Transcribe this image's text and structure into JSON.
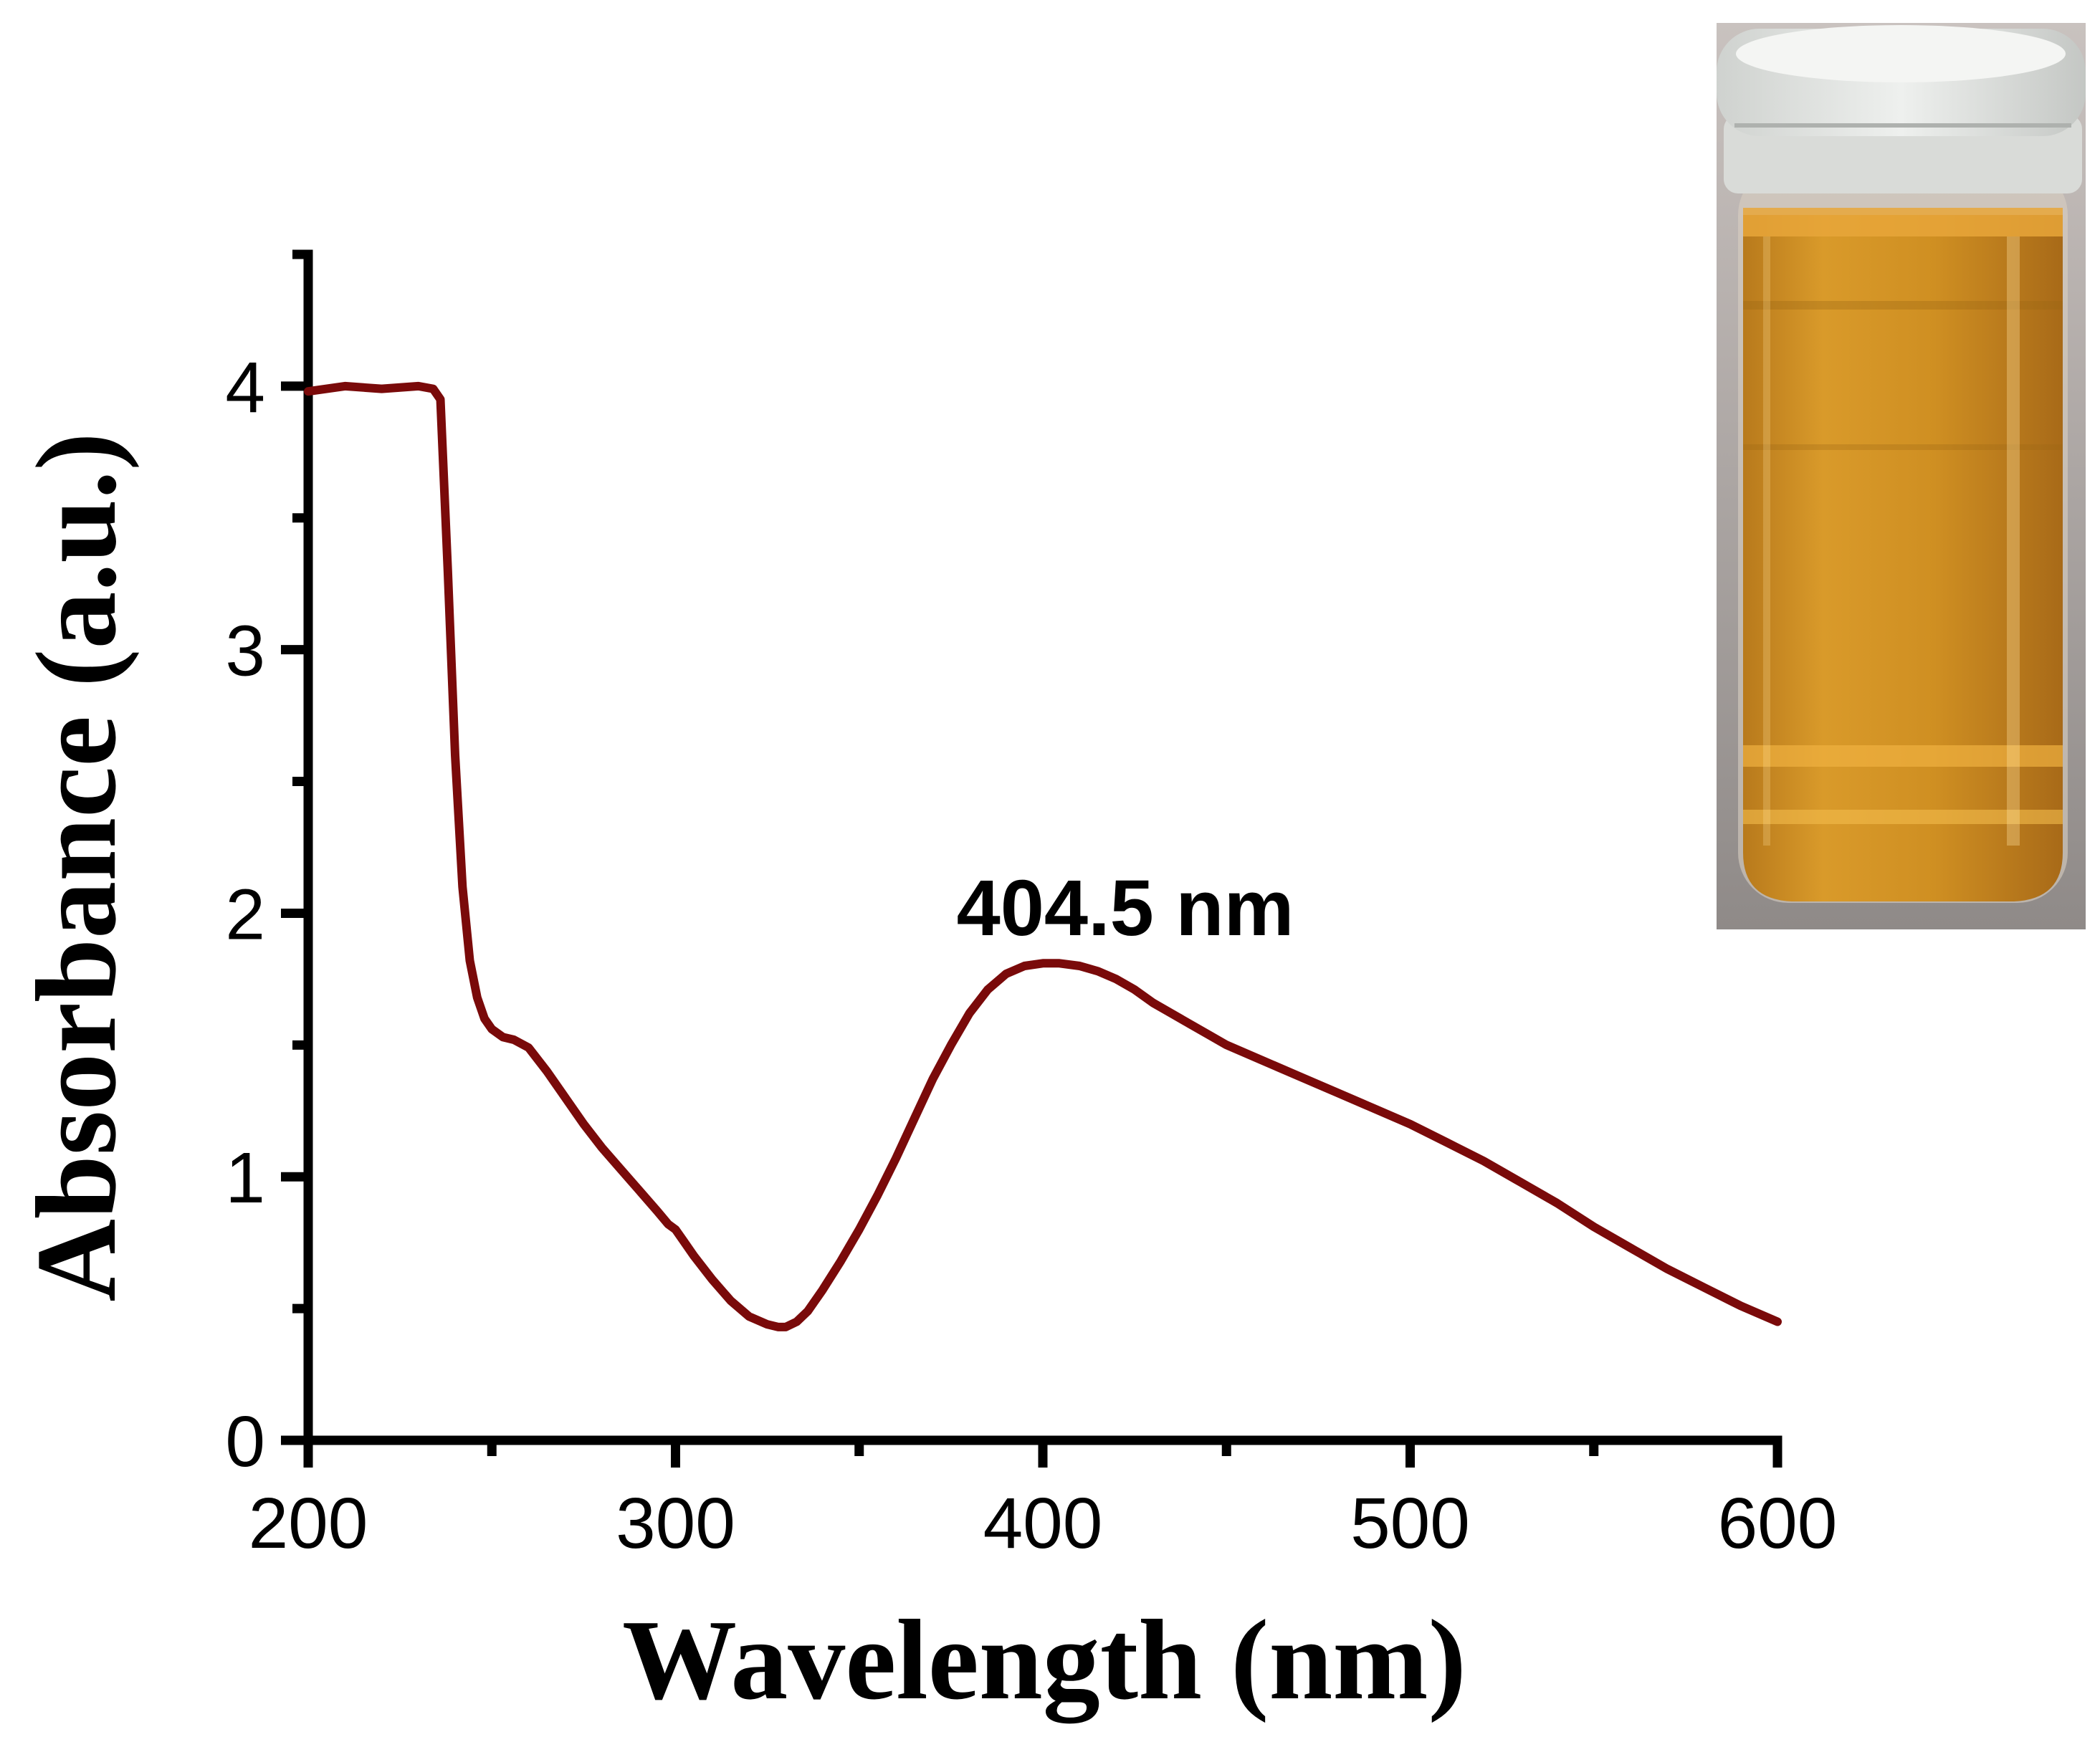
{
  "chart_data": {
    "type": "line",
    "title": "",
    "xlabel": "Wavelength (nm)",
    "ylabel": "Absorbance (a.u.)",
    "xlim": [
      200,
      600
    ],
    "ylim": [
      0,
      4.5
    ],
    "xticks": [
      200,
      300,
      400,
      500,
      600
    ],
    "yticks": [
      0,
      1,
      2,
      3,
      4
    ],
    "xticklabels": [
      "200",
      "300",
      "400",
      "500",
      "600"
    ],
    "yticklabels": [
      "0",
      "1",
      "2",
      "3",
      "4"
    ],
    "grid": false,
    "series": [
      {
        "name": "Absorbance",
        "color": "#7a0a0a",
        "x": [
          200,
          210,
          220,
          230,
          234,
          236,
          238,
          240,
          242,
          244,
          246,
          248,
          250,
          253,
          256,
          260,
          265,
          270,
          275,
          280,
          285,
          290,
          295,
          298,
          300,
          302,
          305,
          310,
          315,
          320,
          325,
          328,
          330,
          333,
          336,
          340,
          345,
          350,
          355,
          360,
          365,
          370,
          375,
          380,
          385,
          390,
          395,
          400,
          404.5,
          410,
          415,
          420,
          425,
          430,
          435,
          440,
          445,
          450,
          460,
          470,
          480,
          490,
          500,
          510,
          520,
          530,
          540,
          550,
          560,
          570,
          580,
          590,
          600
        ],
        "y": [
          3.98,
          4.0,
          3.99,
          4.0,
          3.99,
          3.95,
          3.3,
          2.6,
          2.1,
          1.82,
          1.68,
          1.6,
          1.56,
          1.53,
          1.52,
          1.49,
          1.4,
          1.3,
          1.2,
          1.11,
          1.03,
          0.95,
          0.87,
          0.82,
          0.8,
          0.76,
          0.7,
          0.61,
          0.53,
          0.47,
          0.44,
          0.43,
          0.43,
          0.45,
          0.49,
          0.57,
          0.68,
          0.8,
          0.93,
          1.07,
          1.22,
          1.37,
          1.5,
          1.62,
          1.71,
          1.77,
          1.8,
          1.81,
          1.81,
          1.8,
          1.78,
          1.75,
          1.71,
          1.66,
          1.62,
          1.58,
          1.54,
          1.5,
          1.44,
          1.38,
          1.32,
          1.26,
          1.2,
          1.13,
          1.06,
          0.98,
          0.9,
          0.81,
          0.73,
          0.65,
          0.58,
          0.51,
          0.45
        ]
      }
    ],
    "annotations": [
      {
        "text": "404.5 nm",
        "x": 404.5,
        "y": 1.81
      }
    ]
  },
  "inset_photo": {
    "description_label": "vial-photo"
  }
}
